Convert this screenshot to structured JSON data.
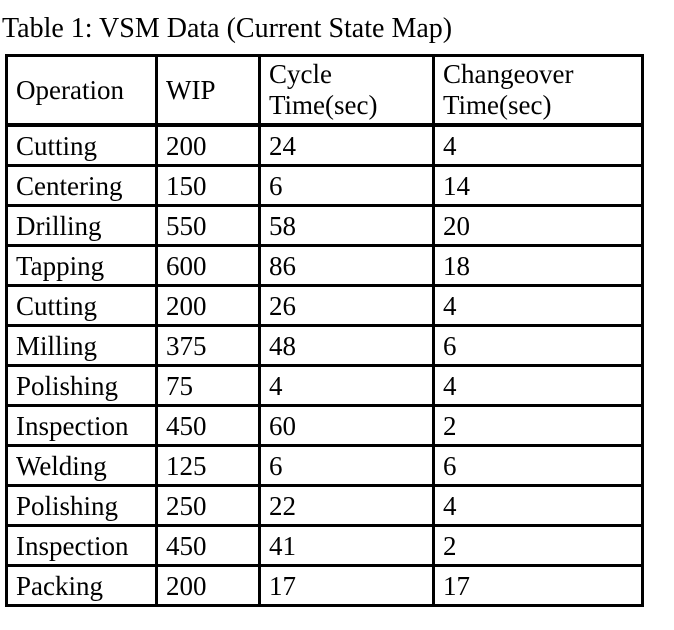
{
  "caption": "Table 1: VSM Data (Current State Map)",
  "table": {
    "columns": [
      "Operation",
      "WIP",
      "Cycle Time(sec)",
      "Changeover Time(sec)"
    ],
    "column_keys": [
      "operation",
      "wip",
      "cycle-time-sec",
      "changeover-time-sec"
    ],
    "rows": [
      [
        "Cutting",
        "200",
        "24",
        "4"
      ],
      [
        "Centering",
        "150",
        "6",
        "14"
      ],
      [
        "Drilling",
        "550",
        "58",
        "20"
      ],
      [
        "Tapping",
        "600",
        "86",
        "18"
      ],
      [
        "Cutting",
        "200",
        "26",
        "4"
      ],
      [
        "Milling",
        "375",
        "48",
        "6"
      ],
      [
        "Polishing",
        "75",
        "4",
        "4"
      ],
      [
        "Inspection",
        "450",
        "60",
        "2"
      ],
      [
        "Welding",
        "125",
        "6",
        "6"
      ],
      [
        "Polishing",
        "250",
        "22",
        "4"
      ],
      [
        "Inspection",
        "450",
        "41",
        "2"
      ],
      [
        "Packing",
        "200",
        "17",
        "17"
      ]
    ],
    "colors": {
      "text": "#000000",
      "border": "#000000",
      "background": "#ffffff"
    }
  }
}
